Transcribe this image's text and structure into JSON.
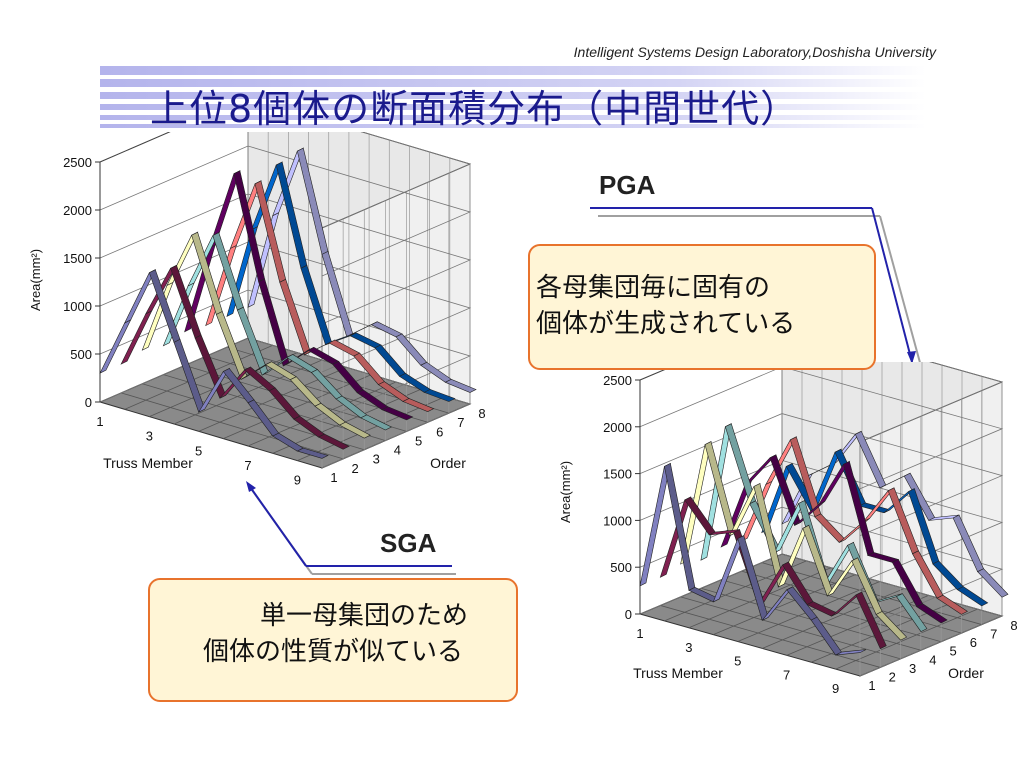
{
  "header": {
    "lab_name": "Intelligent Systems Design Laboratory,Doshisha University",
    "title": "上位8個体の断面積分布（中間世代）",
    "stripe_color": "#c8c8f0",
    "title_color": "#1a1a8c"
  },
  "labels": {
    "pga": "PGA",
    "sga": "SGA"
  },
  "callouts": {
    "pga_line1": "各母集団毎に固有の",
    "pga_line2": "個体が生成されている",
    "sga_line1": "単一母集団のため",
    "sga_line2": "個体の性質が似ている",
    "border_color": "#e8732c",
    "fill_color": "#fff5d6"
  },
  "chart_data": [
    {
      "id": "sga",
      "type": "3d-line",
      "ylabel": "Area(mm²)",
      "xlabel": "Truss Member",
      "zlabel": "Order",
      "ylim": [
        0,
        2500
      ],
      "yticks": [
        "0",
        "500",
        "1000",
        "1500",
        "2000",
        "2500"
      ],
      "xticks": [
        "1",
        "3",
        "5",
        "7",
        "9"
      ],
      "zticks": [
        "1",
        "2",
        "3",
        "4",
        "5",
        "6",
        "7",
        "8"
      ],
      "x": [
        1,
        2,
        3,
        4,
        5,
        6,
        7,
        8,
        9,
        10
      ],
      "grid": true,
      "series": [
        {
          "color": "#8080c0",
          "values": [
            300,
            900,
            1500,
            850,
            200,
            700,
            450,
            180,
            100,
            100
          ]
        },
        {
          "color": "#802050",
          "values": [
            300,
            900,
            1450,
            800,
            250,
            620,
            480,
            260,
            150,
            100
          ]
        },
        {
          "color": "#ffffc0",
          "values": [
            350,
            1100,
            1700,
            950,
            350,
            580,
            500,
            300,
            180,
            120
          ]
        },
        {
          "color": "#a0e0e0",
          "values": [
            300,
            1000,
            1600,
            900,
            300,
            560,
            480,
            280,
            160,
            110
          ]
        },
        {
          "color": "#600060",
          "values": [
            350,
            1300,
            2150,
            1100,
            300,
            540,
            470,
            250,
            150,
            120
          ]
        },
        {
          "color": "#ff8080",
          "values": [
            320,
            1200,
            1950,
            1000,
            320,
            520,
            460,
            240,
            140,
            110
          ]
        },
        {
          "color": "#0066cc",
          "values": [
            320,
            1300,
            2050,
            1050,
            330,
            500,
            450,
            230,
            140,
            120
          ]
        },
        {
          "color": "#c0c0ff",
          "values": [
            320,
            1350,
            2100,
            1100,
            320,
            520,
            470,
            250,
            150,
            120
          ]
        }
      ]
    },
    {
      "id": "pga",
      "type": "3d-line",
      "ylabel": "Area(mm²)",
      "xlabel": "Truss Member",
      "zlabel": "Order",
      "ylim": [
        0,
        2500
      ],
      "yticks": [
        "0",
        "500",
        "1000",
        "1500",
        "2000",
        "2500"
      ],
      "xticks": [
        "1",
        "3",
        "5",
        "7",
        "9"
      ],
      "zticks": [
        "1",
        "2",
        "3",
        "4",
        "5",
        "6",
        "7",
        "8"
      ],
      "x": [
        1,
        2,
        3,
        4,
        5,
        6,
        7,
        8,
        9,
        10
      ],
      "grid": true,
      "series": [
        {
          "color": "#8080c0",
          "values": [
            300,
            1650,
            400,
            350,
            1100,
            300,
            700,
            450,
            150,
            250
          ]
        },
        {
          "color": "#802050",
          "values": [
            300,
            1200,
            900,
            1000,
            300,
            800,
            450,
            400,
            700,
            200
          ]
        },
        {
          "color": "#ffffc0",
          "values": [
            350,
            1700,
            800,
            1400,
            400,
            1100,
            450,
            900,
            400,
            200
          ]
        },
        {
          "color": "#a0e0e0",
          "values": [
            300,
            1800,
            1050,
            600,
            1200,
            400,
            900,
            350,
            500,
            200
          ]
        },
        {
          "color": "#600060",
          "values": [
            350,
            1100,
            1450,
            800,
            1100,
            1600,
            700,
            700,
            300,
            200
          ]
        },
        {
          "color": "#ff8080",
          "values": [
            320,
            1000,
            1550,
            800,
            600,
            900,
            1300,
            700,
            300,
            200
          ]
        },
        {
          "color": "#0066cc",
          "values": [
            320,
            1100,
            700,
            1400,
            900,
            900,
            1200,
            500,
            300,
            200
          ]
        },
        {
          "color": "#c0c0ff",
          "values": [
            320,
            900,
            1100,
            1500,
            1000,
            1200,
            800,
            900,
            400,
            200
          ]
        }
      ]
    }
  ]
}
